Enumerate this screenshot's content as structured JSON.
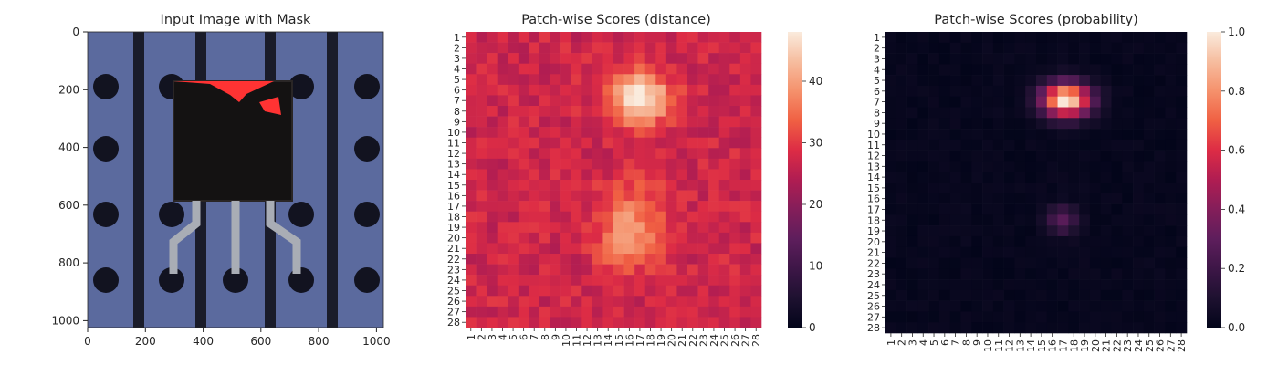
{
  "chart_data": [
    {
      "type": "image",
      "title": "Input Image with Mask",
      "x_ticks": [
        0,
        200,
        400,
        600,
        800,
        1000
      ],
      "y_ticks": [
        0,
        200,
        400,
        600,
        800,
        1000
      ],
      "xlim": [
        0,
        1024
      ],
      "ylim": [
        1024,
        0
      ],
      "mask_color": "#ff3333"
    },
    {
      "type": "heatmap",
      "title": "Patch-wise Scores (distance)",
      "x_tick_labels": [
        "1",
        "2",
        "3",
        "4",
        "5",
        "6",
        "7",
        "8",
        "9",
        "10",
        "11",
        "12",
        "13",
        "14",
        "15",
        "16",
        "17",
        "18",
        "19",
        "20",
        "21",
        "22",
        "23",
        "24",
        "25",
        "26",
        "27",
        "28"
      ],
      "y_tick_labels": [
        "1",
        "2",
        "3",
        "4",
        "5",
        "6",
        "7",
        "8",
        "9",
        "10",
        "11",
        "12",
        "13",
        "14",
        "15",
        "16",
        "17",
        "18",
        "19",
        "20",
        "21",
        "22",
        "23",
        "24",
        "25",
        "26",
        "27",
        "28"
      ],
      "colorbar_ticks": [
        0,
        10,
        20,
        30,
        40
      ],
      "vmin": 0,
      "vmax": 48,
      "colormap": "rocket",
      "description": "28x28 grid; values ~23-30 background, hot blob ~48 near rows 5-9 cols 15-19, secondary ~36 near rows 16-22 cols 14-19"
    },
    {
      "type": "heatmap",
      "title": "Patch-wise Scores (probability)",
      "x_tick_labels": [
        "1",
        "2",
        "3",
        "4",
        "5",
        "6",
        "7",
        "8",
        "9",
        "10",
        "11",
        "12",
        "13",
        "14",
        "15",
        "16",
        "17",
        "18",
        "19",
        "20",
        "21",
        "22",
        "23",
        "24",
        "25",
        "26",
        "27",
        "28"
      ],
      "y_tick_labels": [
        "1",
        "2",
        "3",
        "4",
        "5",
        "6",
        "7",
        "8",
        "9",
        "10",
        "11",
        "12",
        "13",
        "14",
        "15",
        "16",
        "17",
        "18",
        "19",
        "20",
        "21",
        "22",
        "23",
        "24",
        "25",
        "26",
        "27",
        "28"
      ],
      "colorbar_ticks": [
        "0.0",
        "0.2",
        "0.4",
        "0.6",
        "0.8",
        "1.0"
      ],
      "vmin": 0,
      "vmax": 1,
      "colormap": "rocket",
      "description": "28x28 grid; near 0 everywhere except peak ~1.0 near rows 5-8 cols 15-19 and faint ~0.3 near row 17-18 cols 16-18"
    }
  ]
}
